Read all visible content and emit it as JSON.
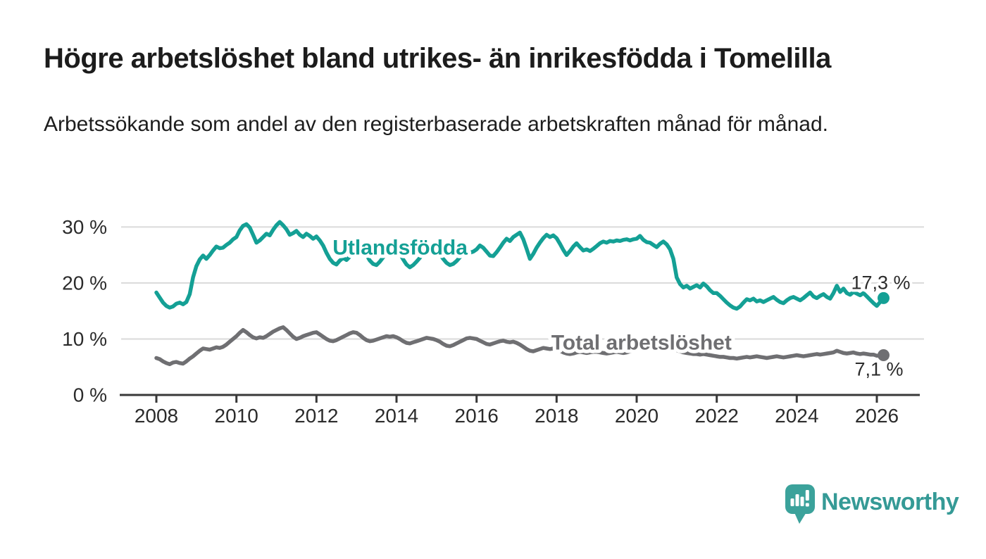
{
  "header": {
    "title": "Högre arbetslöshet bland utrikes- än inrikesfödda i Tomelilla",
    "subtitle": "Arbetssökande som andel av den registerbaserade arbetskraften månad för månad."
  },
  "chart_data": {
    "type": "line",
    "title": "Högre arbetslöshet bland utrikes- än inrikesfödda i Tomelilla",
    "subtitle": "Arbetssökande som andel av den registerbaserade arbetskraften månad för månad.",
    "x_start_year": 2008.0,
    "x_step_months": 1,
    "grid": true,
    "legend_position": "inline-labels",
    "x_axis": {
      "ticks": [
        2008,
        2010,
        2012,
        2014,
        2016,
        2018,
        2020,
        2022,
        2024,
        2026
      ],
      "labels": [
        "2008",
        "2010",
        "2012",
        "2014",
        "2016",
        "2018",
        "2020",
        "2022",
        "2024",
        "2026"
      ]
    },
    "y_axis": {
      "ticks": [
        0,
        10,
        20,
        30
      ],
      "labels": [
        "0 %",
        "10 %",
        "20 %",
        "30 %"
      ],
      "range": [
        0,
        32
      ],
      "unit": "%"
    },
    "series": [
      {
        "name": "Utlandsfödda",
        "color": "#14a095",
        "end_value": 17.3,
        "end_label": "17,3 %",
        "values": [
          18.3,
          17.4,
          16.5,
          15.9,
          15.6,
          15.8,
          16.3,
          16.5,
          16.2,
          16.6,
          18.0,
          21.0,
          23.0,
          24.2,
          24.9,
          24.3,
          25.0,
          25.8,
          26.5,
          26.2,
          26.3,
          26.8,
          27.2,
          27.8,
          28.2,
          29.4,
          30.2,
          30.5,
          29.9,
          28.6,
          27.2,
          27.6,
          28.2,
          28.8,
          28.5,
          29.5,
          30.3,
          30.9,
          30.3,
          29.6,
          28.6,
          28.9,
          29.3,
          28.6,
          28.2,
          28.8,
          28.4,
          27.9,
          28.3,
          27.6,
          26.7,
          25.4,
          24.3,
          23.6,
          23.3,
          24.0,
          24.5,
          24.1,
          24.7,
          25.6,
          26.3,
          27.0,
          26.2,
          25.0,
          24.0,
          23.4,
          23.2,
          23.8,
          24.6,
          25.4,
          26.0,
          26.4,
          26.2,
          25.3,
          24.2,
          23.3,
          22.8,
          23.2,
          23.8,
          24.5,
          25.2,
          25.8,
          26.2,
          26.0,
          25.8,
          25.1,
          24.3,
          23.6,
          23.2,
          23.4,
          23.9,
          24.6,
          25.2,
          25.7,
          25.4,
          25.6,
          26.0,
          26.7,
          26.3,
          25.6,
          24.9,
          24.8,
          25.5,
          26.3,
          27.2,
          27.9,
          27.5,
          28.2,
          28.6,
          29.0,
          27.8,
          26.1,
          24.3,
          25.2,
          26.3,
          27.2,
          28.0,
          28.6,
          28.2,
          28.5,
          28.0,
          27.0,
          25.9,
          25.0,
          25.7,
          26.5,
          27.1,
          26.4,
          25.8,
          26.0,
          25.7,
          26.1,
          26.6,
          27.1,
          27.4,
          27.2,
          27.5,
          27.4,
          27.6,
          27.5,
          27.7,
          27.8,
          27.6,
          27.8,
          27.9,
          28.4,
          27.7,
          27.3,
          27.2,
          26.8,
          26.4,
          27.0,
          27.4,
          26.9,
          26.0,
          24.3,
          21.0,
          19.8,
          19.2,
          19.5,
          19.0,
          19.3,
          19.6,
          19.2,
          19.9,
          19.4,
          18.7,
          18.2,
          18.2,
          17.7,
          17.1,
          16.5,
          16.0,
          15.6,
          15.4,
          15.8,
          16.5,
          17.1,
          16.9,
          17.2,
          16.7,
          16.9,
          16.6,
          16.9,
          17.2,
          17.5,
          17.0,
          16.6,
          16.4,
          16.9,
          17.3,
          17.5,
          17.2,
          16.9,
          17.3,
          17.8,
          18.3,
          17.6,
          17.3,
          17.7,
          18.0,
          17.5,
          17.2,
          18.2,
          19.5,
          18.4,
          19.0,
          18.2,
          17.9,
          18.4,
          18.1,
          17.8,
          18.2,
          17.6,
          17.0,
          16.4,
          15.9,
          16.6,
          17.3
        ]
      },
      {
        "name": "Total arbetslöshet",
        "color": "#6f6f72",
        "end_value": 7.1,
        "end_label": "7,1 %",
        "values": [
          6.6,
          6.4,
          6.0,
          5.7,
          5.5,
          5.8,
          5.9,
          5.7,
          5.6,
          6.0,
          6.5,
          6.9,
          7.4,
          7.9,
          8.3,
          8.2,
          8.1,
          8.3,
          8.5,
          8.4,
          8.6,
          9.0,
          9.5,
          10.0,
          10.5,
          11.1,
          11.6,
          11.2,
          10.7,
          10.3,
          10.1,
          10.3,
          10.2,
          10.5,
          10.9,
          11.3,
          11.6,
          11.9,
          12.1,
          11.6,
          11.0,
          10.4,
          10.0,
          10.2,
          10.5,
          10.7,
          10.9,
          11.1,
          11.2,
          10.8,
          10.4,
          10.0,
          9.7,
          9.6,
          9.8,
          10.1,
          10.4,
          10.7,
          11.0,
          11.2,
          11.1,
          10.7,
          10.2,
          9.8,
          9.6,
          9.7,
          9.9,
          10.1,
          10.3,
          10.5,
          10.4,
          10.5,
          10.3,
          10.0,
          9.6,
          9.3,
          9.2,
          9.4,
          9.6,
          9.8,
          10.0,
          10.2,
          10.1,
          10.0,
          9.8,
          9.5,
          9.1,
          8.8,
          8.7,
          8.9,
          9.2,
          9.5,
          9.8,
          10.1,
          10.2,
          10.1,
          10.0,
          9.7,
          9.4,
          9.1,
          9.0,
          9.2,
          9.4,
          9.6,
          9.7,
          9.5,
          9.4,
          9.5,
          9.3,
          9.0,
          8.6,
          8.2,
          7.9,
          7.8,
          8.0,
          8.2,
          8.4,
          8.3,
          8.2,
          8.3,
          8.1,
          7.9,
          7.6,
          7.4,
          7.3,
          7.4,
          7.6,
          7.7,
          7.6,
          7.5,
          7.6,
          7.7,
          7.7,
          7.6,
          7.5,
          7.4,
          7.5,
          7.6,
          7.7,
          7.6,
          7.5,
          7.6,
          7.8,
          8.0,
          8.3,
          8.6,
          9.0,
          9.3,
          9.4,
          9.2,
          9.0,
          8.8,
          8.7,
          8.5,
          8.3,
          8.1,
          8.0,
          7.8,
          7.6,
          7.5,
          7.4,
          7.3,
          7.3,
          7.2,
          7.3,
          7.2,
          7.1,
          7.0,
          6.9,
          6.8,
          6.8,
          6.7,
          6.6,
          6.6,
          6.5,
          6.6,
          6.7,
          6.8,
          6.7,
          6.8,
          6.9,
          6.8,
          6.7,
          6.6,
          6.7,
          6.8,
          6.9,
          6.8,
          6.7,
          6.8,
          6.9,
          7.0,
          7.1,
          7.0,
          6.9,
          7.0,
          7.1,
          7.2,
          7.3,
          7.2,
          7.3,
          7.4,
          7.5,
          7.6,
          7.9,
          7.7,
          7.5,
          7.4,
          7.5,
          7.6,
          7.4,
          7.3,
          7.4,
          7.3,
          7.2,
          7.2,
          7.0,
          7.0,
          7.1
        ]
      }
    ],
    "annotations": [
      {
        "text": "Utlandsfödda",
        "x_year": 2014.09,
        "y_value": 26.3,
        "color": "#14a095"
      },
      {
        "text": "Total arbetslöshet",
        "x_year": 2020.12,
        "y_value": 9.3,
        "color": "#6f6f72"
      }
    ]
  },
  "branding": {
    "name": "Newsworthy",
    "color": "#359a96",
    "icon": "newsworthy-speech-bubble-bar-chart"
  }
}
